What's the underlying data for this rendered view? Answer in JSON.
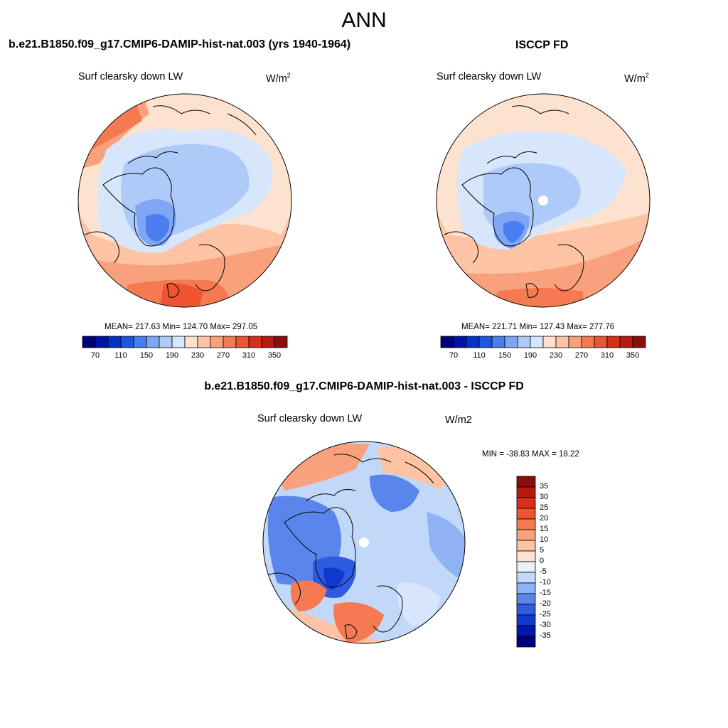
{
  "figure": {
    "season": "ANN"
  },
  "panel_model": {
    "case_title": "b.e21.B1850.f09_g17.CMIP6-DAMIP-hist-nat.003 (yrs 1940-1964)",
    "variable": "Surf clearsky down LW",
    "units_base": "W/m",
    "units_exp": "2",
    "stats": "MEAN= 217.63  Min= 124.70  Max= 297.05"
  },
  "panel_obs": {
    "case_title": "ISCCP FD",
    "variable": "Surf clearsky down LW",
    "units_base": "W/m",
    "units_exp": "2",
    "stats": "MEAN= 221.71  Min= 127.43  Max= 277.76"
  },
  "panel_diff": {
    "case_title": "b.e21.B1850.f09_g17.CMIP6-DAMIP-hist-nat.003 - ISCCP FD",
    "variable": "Surf clearsky down LW",
    "units": "W/m2",
    "stats": "MIN = -38.83 MAX =  18.22"
  },
  "colorbar_abs": {
    "labels": [
      "70",
      "110",
      "150",
      "190",
      "230",
      "270",
      "310",
      "350"
    ],
    "colors": [
      "#00007f",
      "#0012a5",
      "#0033cc",
      "#1f55e0",
      "#4a7ef0",
      "#7fa6f5",
      "#aecaf9",
      "#d7e6fb",
      "#fde3cf",
      "#fcc3a4",
      "#f9a17c",
      "#f57a52",
      "#ee5431",
      "#d7301a",
      "#b81a10",
      "#8b0d0d"
    ]
  },
  "colorbar_diff": {
    "labels": [
      "35",
      "30",
      "25",
      "20",
      "15",
      "10",
      "5",
      "0",
      "-5",
      "-10",
      "-15",
      "-20",
      "-25",
      "-30",
      "-35"
    ],
    "colors": [
      "#8b0d0d",
      "#b81a10",
      "#d7301a",
      "#ee5431",
      "#f57a52",
      "#f9a17c",
      "#fcc3a4",
      "#fde3cf",
      "#e8f0fb",
      "#c2d8f8",
      "#8eb2f4",
      "#5a86ec",
      "#2f5ae2",
      "#1038cc",
      "#0019a8",
      "#00007f"
    ]
  }
}
